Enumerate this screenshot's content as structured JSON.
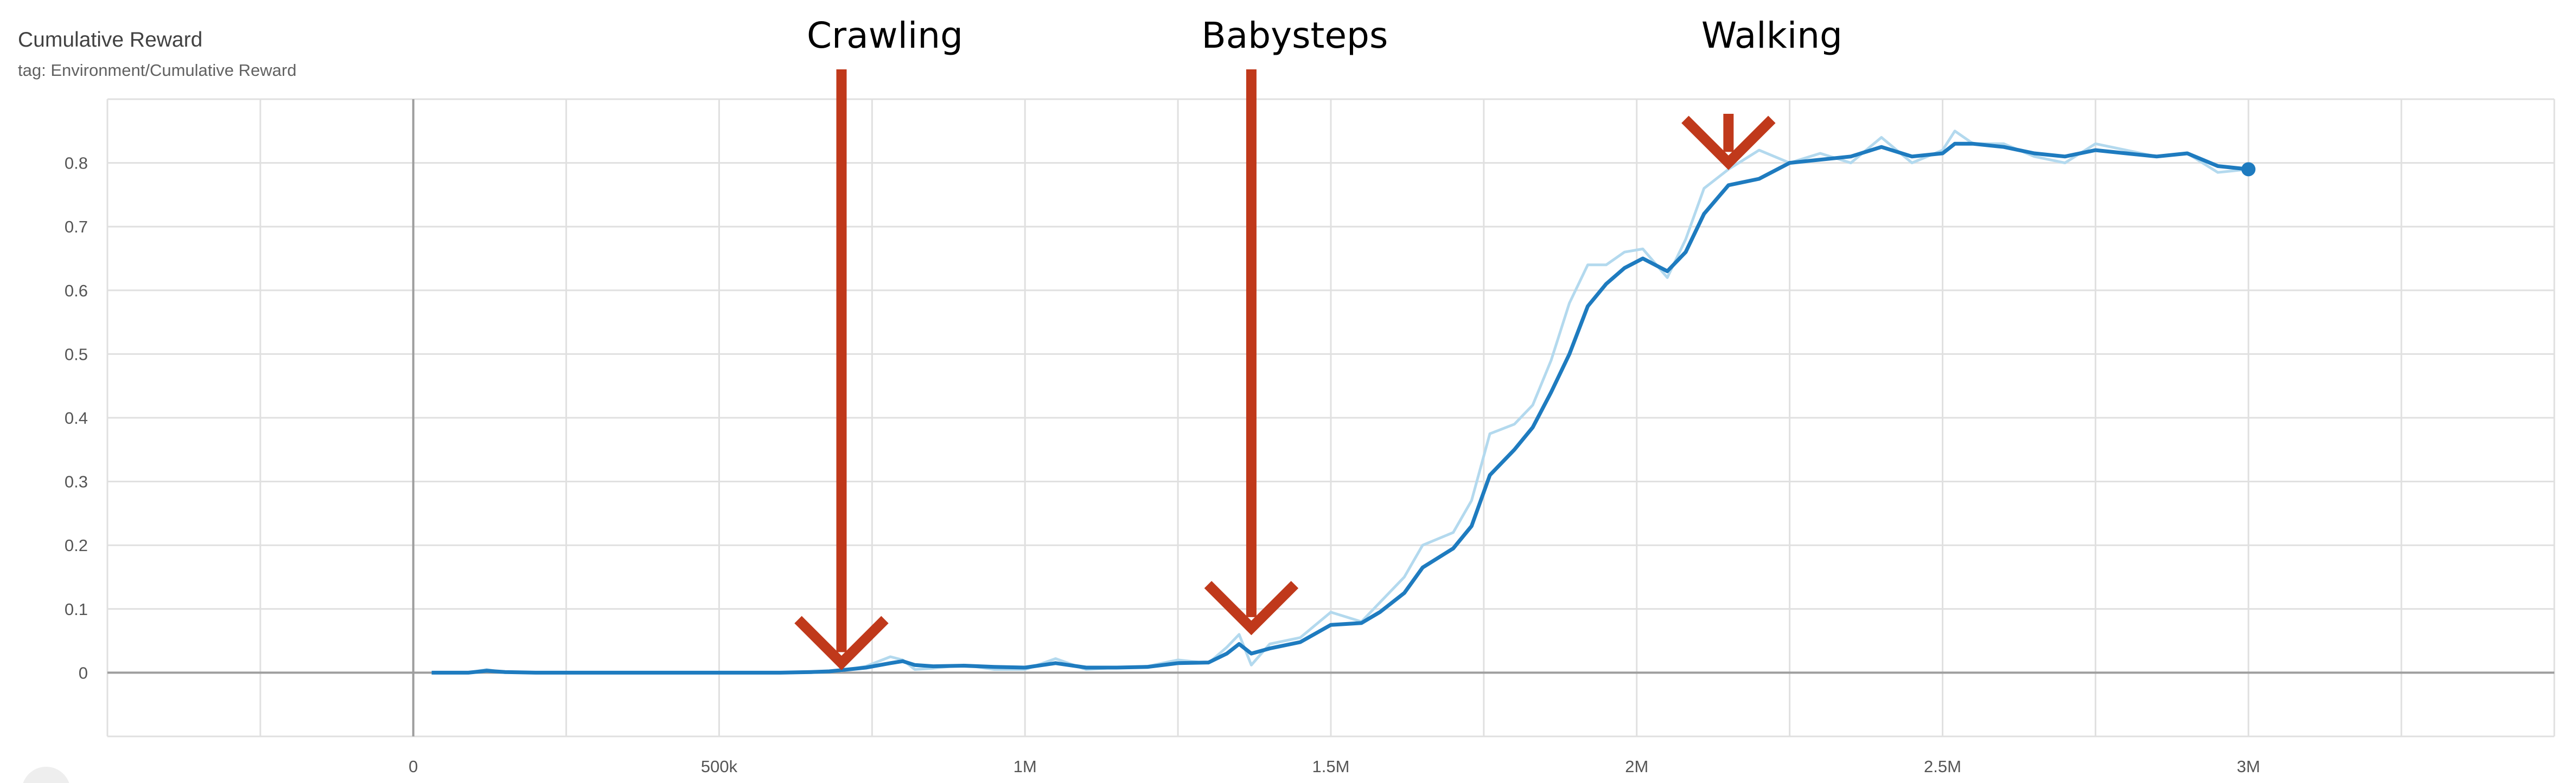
{
  "card": {
    "title": "Cumulative Reward",
    "tag": "tag: Environment/Cumulative Reward"
  },
  "colors": {
    "smoothed": "#1e7bbf",
    "raw": "#b3d9ee",
    "arrow": "#c0391b",
    "grid": "#e0e0e0",
    "axis": "#9e9e9e"
  },
  "chart_data": {
    "type": "line",
    "title": "Cumulative Reward",
    "subtitle": "tag: Environment/Cumulative Reward",
    "xlabel": "",
    "ylabel": "",
    "xlim": [
      -500000,
      3500000
    ],
    "ylim": [
      -0.1,
      0.9
    ],
    "grid": true,
    "x_ticks": [
      {
        "value": 0,
        "label": "0"
      },
      {
        "value": 500000,
        "label": "500k"
      },
      {
        "value": 1000000,
        "label": "1M"
      },
      {
        "value": 1500000,
        "label": "1.5M"
      },
      {
        "value": 2000000,
        "label": "2M"
      },
      {
        "value": 2500000,
        "label": "2.5M"
      },
      {
        "value": 3000000,
        "label": "3M"
      }
    ],
    "y_ticks": [
      {
        "value": 0,
        "label": "0"
      },
      {
        "value": 0.1,
        "label": "0.1"
      },
      {
        "value": 0.2,
        "label": "0.2"
      },
      {
        "value": 0.3,
        "label": "0.3"
      },
      {
        "value": 0.4,
        "label": "0.4"
      },
      {
        "value": 0.5,
        "label": "0.5"
      },
      {
        "value": 0.6,
        "label": "0.6"
      },
      {
        "value": 0.7,
        "label": "0.7"
      },
      {
        "value": 0.8,
        "label": "0.8"
      }
    ],
    "series": [
      {
        "role": "raw",
        "color": "#b3d9ee",
        "x": [
          30000,
          90000,
          120000,
          150000,
          200000,
          300000,
          400000,
          500000,
          600000,
          650000,
          680000,
          700000,
          740000,
          780000,
          800000,
          820000,
          850000,
          900000,
          950000,
          1000000,
          1050000,
          1100000,
          1150000,
          1200000,
          1250000,
          1300000,
          1330000,
          1350000,
          1370000,
          1400000,
          1450000,
          1500000,
          1550000,
          1580000,
          1620000,
          1650000,
          1700000,
          1730000,
          1760000,
          1800000,
          1830000,
          1860000,
          1890000,
          1920000,
          1950000,
          1980000,
          2010000,
          2050000,
          2080000,
          2110000,
          2150000,
          2200000,
          2250000,
          2300000,
          2350000,
          2400000,
          2450000,
          2500000,
          2520000,
          2550000,
          2600000,
          2650000,
          2700000,
          2750000,
          2800000,
          2850000,
          2900000,
          2950000,
          3000000
        ],
        "y": [
          0,
          0,
          0.005,
          0,
          0,
          0,
          0,
          0,
          0,
          0,
          0.003,
          0.003,
          0.01,
          0.025,
          0.02,
          0.005,
          0.007,
          0.012,
          0.005,
          0.005,
          0.022,
          0.005,
          0.008,
          0.01,
          0.02,
          0.015,
          0.04,
          0.06,
          0.012,
          0.045,
          0.055,
          0.095,
          0.08,
          0.11,
          0.15,
          0.2,
          0.22,
          0.27,
          0.375,
          0.39,
          0.42,
          0.49,
          0.58,
          0.64,
          0.64,
          0.66,
          0.665,
          0.62,
          0.68,
          0.76,
          0.79,
          0.82,
          0.8,
          0.815,
          0.8,
          0.84,
          0.8,
          0.82,
          0.85,
          0.83,
          0.83,
          0.81,
          0.8,
          0.83,
          0.82,
          0.81,
          0.815,
          0.785,
          0.79
        ]
      },
      {
        "role": "smoothed",
        "color": "#1e7bbf",
        "x": [
          30000,
          90000,
          120000,
          150000,
          200000,
          300000,
          400000,
          500000,
          600000,
          650000,
          680000,
          700000,
          740000,
          780000,
          800000,
          820000,
          850000,
          900000,
          950000,
          1000000,
          1050000,
          1100000,
          1150000,
          1200000,
          1250000,
          1300000,
          1330000,
          1350000,
          1370000,
          1400000,
          1450000,
          1500000,
          1550000,
          1580000,
          1620000,
          1650000,
          1700000,
          1730000,
          1760000,
          1800000,
          1830000,
          1860000,
          1890000,
          1920000,
          1950000,
          1980000,
          2010000,
          2050000,
          2080000,
          2110000,
          2150000,
          2200000,
          2250000,
          2300000,
          2350000,
          2400000,
          2450000,
          2500000,
          2520000,
          2550000,
          2600000,
          2650000,
          2700000,
          2750000,
          2800000,
          2850000,
          2900000,
          2950000,
          3000000
        ],
        "y": [
          0,
          0,
          0.003,
          0.001,
          0,
          0,
          0,
          0,
          0,
          0.001,
          0.002,
          0.004,
          0.008,
          0.015,
          0.018,
          0.012,
          0.01,
          0.011,
          0.009,
          0.008,
          0.015,
          0.008,
          0.008,
          0.009,
          0.015,
          0.016,
          0.03,
          0.045,
          0.03,
          0.038,
          0.048,
          0.075,
          0.078,
          0.095,
          0.125,
          0.165,
          0.195,
          0.23,
          0.31,
          0.35,
          0.385,
          0.44,
          0.5,
          0.575,
          0.61,
          0.635,
          0.65,
          0.63,
          0.66,
          0.72,
          0.765,
          0.775,
          0.8,
          0.805,
          0.81,
          0.825,
          0.81,
          0.815,
          0.83,
          0.83,
          0.825,
          0.815,
          0.81,
          0.82,
          0.815,
          0.81,
          0.815,
          0.795,
          0.79
        ]
      }
    ],
    "annotations": [
      {
        "label": "Crawling",
        "x": 700000,
        "y": 0.005
      },
      {
        "label": "Babysteps",
        "x": 1370000,
        "y": 0.06
      },
      {
        "label": "Walking",
        "x": 2150000,
        "y": 0.79
      }
    ]
  }
}
